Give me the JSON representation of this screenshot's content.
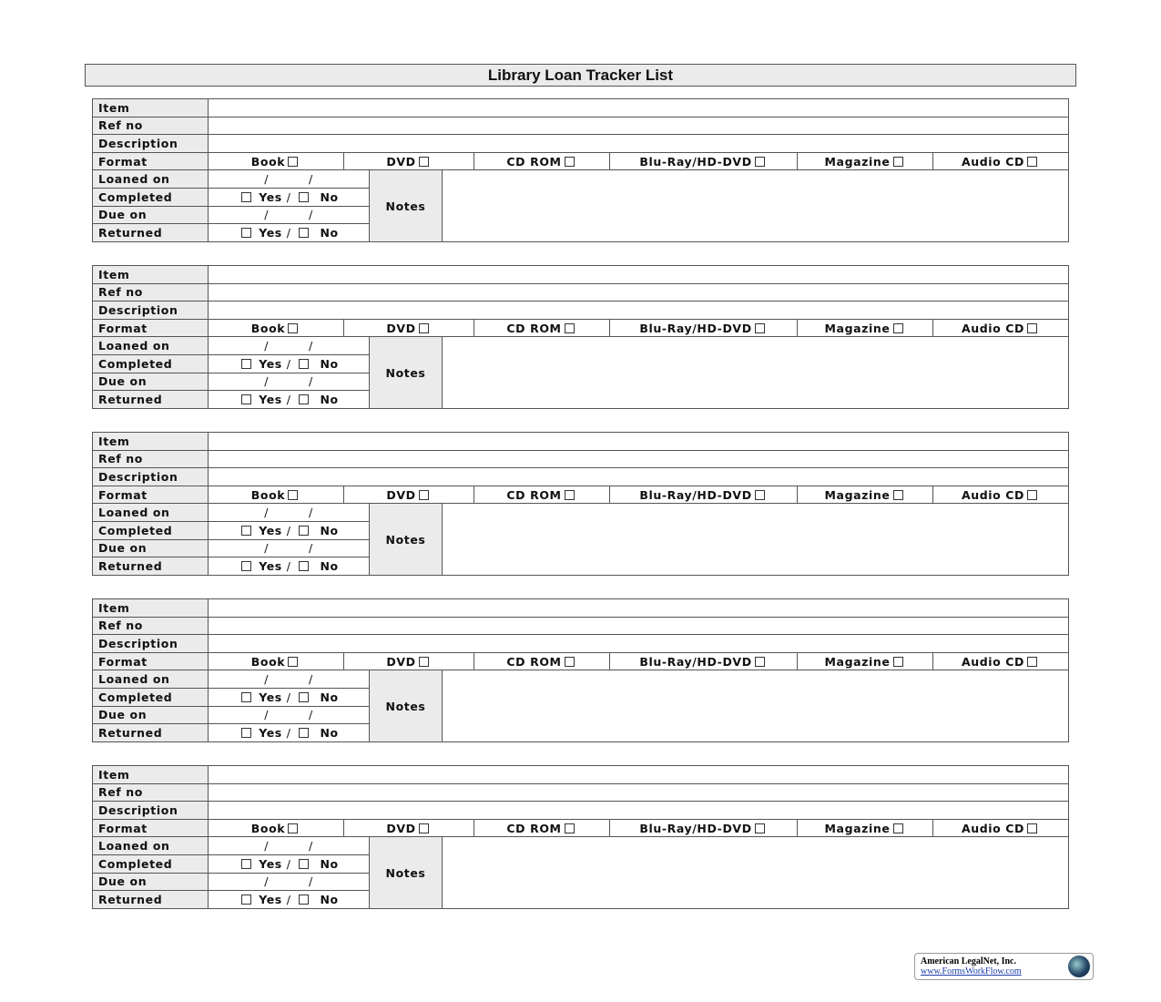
{
  "title": "Library Loan Tracker List",
  "labels": {
    "item": "Item",
    "ref_no": "Ref no",
    "description": "Description",
    "format": "Format",
    "loaned_on": "Loaned on",
    "completed": "Completed",
    "due_on": "Due on",
    "returned": "Returned",
    "notes": "Notes",
    "yes": "Yes",
    "no": "No",
    "date_sep": "/"
  },
  "formats": [
    "Book",
    "DVD",
    "CD ROM",
    "Blu-Ray/HD-DVD",
    "Magazine",
    "Audio CD"
  ],
  "entries": [
    {
      "item": "",
      "ref_no": "",
      "description": "",
      "loaned_on": "",
      "due_on": "",
      "notes": ""
    },
    {
      "item": "",
      "ref_no": "",
      "description": "",
      "loaned_on": "",
      "due_on": "",
      "notes": ""
    },
    {
      "item": "",
      "ref_no": "",
      "description": "",
      "loaned_on": "",
      "due_on": "",
      "notes": ""
    },
    {
      "item": "",
      "ref_no": "",
      "description": "",
      "loaned_on": "",
      "due_on": "",
      "notes": ""
    },
    {
      "item": "",
      "ref_no": "",
      "description": "",
      "loaned_on": "",
      "due_on": "",
      "notes": ""
    }
  ],
  "footer": {
    "company": "American LegalNet, Inc.",
    "url": "www.FormsWorkFlow.com",
    "logo_icon": "globe-icon"
  }
}
